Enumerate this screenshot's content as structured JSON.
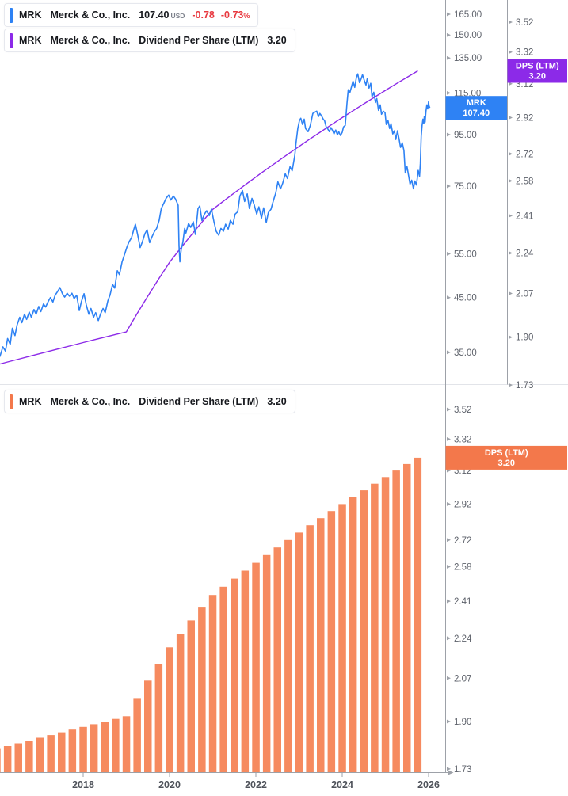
{
  "colors": {
    "price_blue": "#2e82f4",
    "dps_purple": "#8c2ae8",
    "bar_orange": "#f68a5f",
    "badge_orange": "#f3784b",
    "down_red": "#e8383f",
    "tick_label_gray": "#5e626b",
    "axis_gray": "#9da1a8",
    "year_label_gray": "#4e525a",
    "divider_gray": "#e2e4e9",
    "text_dark": "#16181d"
  },
  "legend_rows": {
    "price_row": {
      "symbol": "MRK",
      "company": "Merck & Co., Inc.",
      "price": "107.40",
      "currency": "USD",
      "change": "-0.78",
      "change_pct": "-0.73",
      "percent": "%"
    },
    "dps_row_top": {
      "symbol": "MRK",
      "company": "Merck & Co., Inc.",
      "metric": "Dividend Per Share (LTM)",
      "value": "3.20"
    },
    "dps_row_bottom": {
      "symbol": "MRK",
      "company": "Merck & Co., Inc.",
      "metric": "Dividend Per Share (LTM)",
      "value": "3.20"
    }
  },
  "badges": {
    "price": {
      "line1": "MRK",
      "line2": "107.40"
    },
    "dps_top": {
      "line1": "DPS (LTM)",
      "line2": "3.20"
    },
    "dps_bottom": {
      "line1": "DPS (LTM)",
      "line2": "3.20"
    }
  },
  "chart_data": [
    {
      "type": "line",
      "title": "MRK Merck & Co., Inc. price (USD) with Dividend Per Share (LTM) overlay",
      "x_axis": {
        "range": [
          2016.07,
          2026.03
        ],
        "tick_years": [
          2018,
          2020,
          2022,
          2024,
          2026
        ]
      },
      "price_axis": {
        "scale": "log",
        "ticks": [
          165,
          150,
          135,
          115,
          95,
          75,
          55,
          45,
          35
        ],
        "last_price": 107.4
      },
      "dps_axis": {
        "scale": "log",
        "ticks": [
          3.52,
          3.32,
          3.12,
          2.92,
          2.72,
          2.58,
          2.41,
          2.24,
          2.07,
          1.9,
          1.73
        ],
        "last_value": 3.2
      },
      "series": [
        {
          "name": "MRK price",
          "color_key": "price_blue",
          "points": [
            [
              2016.07,
              34.3
            ],
            [
              2016.14,
              35.9
            ],
            [
              2016.2,
              35.2
            ],
            [
              2016.25,
              37.3
            ],
            [
              2016.31,
              36.3
            ],
            [
              2016.36,
              39.1
            ],
            [
              2016.42,
              37.8
            ],
            [
              2016.47,
              39.7
            ],
            [
              2016.53,
              41.1
            ],
            [
              2016.58,
              40.1
            ],
            [
              2016.64,
              41.7
            ],
            [
              2016.69,
              40.7
            ],
            [
              2016.75,
              42.1
            ],
            [
              2016.8,
              41.1
            ],
            [
              2016.86,
              42.6
            ],
            [
              2016.91,
              41.7
            ],
            [
              2016.97,
              43.2
            ],
            [
              2017.02,
              42.2
            ],
            [
              2017.08,
              43.7
            ],
            [
              2017.13,
              43.1
            ],
            [
              2017.19,
              44.2
            ],
            [
              2017.24,
              45.0
            ],
            [
              2017.3,
              44.1
            ],
            [
              2017.35,
              45.5
            ],
            [
              2017.41,
              46.3
            ],
            [
              2017.46,
              47.1
            ],
            [
              2017.52,
              45.8
            ],
            [
              2017.57,
              45.1
            ],
            [
              2017.63,
              45.9
            ],
            [
              2017.68,
              45.3
            ],
            [
              2017.74,
              45.9
            ],
            [
              2017.79,
              44.8
            ],
            [
              2017.85,
              45.5
            ],
            [
              2017.91,
              42.4
            ],
            [
              2017.96,
              44.2
            ],
            [
              2018.02,
              45.8
            ],
            [
              2018.07,
              43.6
            ],
            [
              2018.13,
              41.7
            ],
            [
              2018.18,
              42.8
            ],
            [
              2018.24,
              41.1
            ],
            [
              2018.29,
              42.0
            ],
            [
              2018.35,
              40.5
            ],
            [
              2018.4,
              41.7
            ],
            [
              2018.46,
              42.8
            ],
            [
              2018.51,
              42.0
            ],
            [
              2018.57,
              44.3
            ],
            [
              2018.62,
              45.5
            ],
            [
              2018.68,
              47.8
            ],
            [
              2018.73,
              47.0
            ],
            [
              2018.79,
              50.9
            ],
            [
              2018.84,
              50.0
            ],
            [
              2018.9,
              53.0
            ],
            [
              2018.95,
              54.6
            ],
            [
              2019.01,
              56.6
            ],
            [
              2019.06,
              58.1
            ],
            [
              2019.12,
              59.2
            ],
            [
              2019.17,
              61.4
            ],
            [
              2019.21,
              63.0
            ],
            [
              2019.26,
              60.1
            ],
            [
              2019.32,
              56.6
            ],
            [
              2019.37,
              58.1
            ],
            [
              2019.43,
              60.3
            ],
            [
              2019.48,
              61.4
            ],
            [
              2019.54,
              57.9
            ],
            [
              2019.59,
              59.4
            ],
            [
              2019.65,
              60.9
            ],
            [
              2019.7,
              61.8
            ],
            [
              2019.76,
              64.1
            ],
            [
              2019.81,
              67.7
            ],
            [
              2019.87,
              69.4
            ],
            [
              2019.92,
              70.9
            ],
            [
              2019.98,
              72.0
            ],
            [
              2020.03,
              70.4
            ],
            [
              2020.09,
              71.7
            ],
            [
              2020.14,
              70.7
            ],
            [
              2020.2,
              68.7
            ],
            [
              2020.22,
              57.0
            ],
            [
              2020.24,
              53.0
            ],
            [
              2020.27,
              56.0
            ],
            [
              2020.31,
              58.1
            ],
            [
              2020.35,
              61.8
            ],
            [
              2020.38,
              60.5
            ],
            [
              2020.44,
              63.2
            ],
            [
              2020.49,
              62.1
            ],
            [
              2020.55,
              63.7
            ],
            [
              2020.6,
              60.1
            ],
            [
              2020.66,
              67.7
            ],
            [
              2020.7,
              68.5
            ],
            [
              2020.75,
              64.1
            ],
            [
              2020.81,
              66.0
            ],
            [
              2020.86,
              67.0
            ],
            [
              2020.92,
              65.5
            ],
            [
              2020.97,
              67.5
            ],
            [
              2021.03,
              63.7
            ],
            [
              2021.08,
              61.0
            ],
            [
              2021.14,
              59.9
            ],
            [
              2021.19,
              61.8
            ],
            [
              2021.25,
              61.0
            ],
            [
              2021.3,
              63.0
            ],
            [
              2021.36,
              61.6
            ],
            [
              2021.41,
              64.1
            ],
            [
              2021.47,
              63.0
            ],
            [
              2021.52,
              66.0
            ],
            [
              2021.58,
              66.7
            ],
            [
              2021.63,
              71.7
            ],
            [
              2021.69,
              73.5
            ],
            [
              2021.74,
              69.9
            ],
            [
              2021.8,
              72.4
            ],
            [
              2021.85,
              67.7
            ],
            [
              2021.91,
              70.9
            ],
            [
              2021.96,
              68.9
            ],
            [
              2022.02,
              66.0
            ],
            [
              2022.07,
              68.2
            ],
            [
              2022.13,
              64.8
            ],
            [
              2022.18,
              67.9
            ],
            [
              2022.24,
              63.5
            ],
            [
              2022.29,
              66.5
            ],
            [
              2022.35,
              67.5
            ],
            [
              2022.4,
              69.9
            ],
            [
              2022.46,
              72.7
            ],
            [
              2022.51,
              76.5
            ],
            [
              2022.57,
              74.1
            ],
            [
              2022.62,
              76.0
            ],
            [
              2022.68,
              79.4
            ],
            [
              2022.73,
              77.7
            ],
            [
              2022.79,
              82.0
            ],
            [
              2022.84,
              80.5
            ],
            [
              2022.9,
              86.3
            ],
            [
              2022.93,
              91.5
            ],
            [
              2022.97,
              97.7
            ],
            [
              2023.01,
              101.3
            ],
            [
              2023.04,
              102.4
            ],
            [
              2023.08,
              99.5
            ],
            [
              2023.12,
              102.0
            ],
            [
              2023.15,
              97.7
            ],
            [
              2023.21,
              96.3
            ],
            [
              2023.26,
              99.1
            ],
            [
              2023.32,
              104.7
            ],
            [
              2023.37,
              105.4
            ],
            [
              2023.41,
              105.8
            ],
            [
              2023.45,
              103.2
            ],
            [
              2023.48,
              104.7
            ],
            [
              2023.52,
              103.6
            ],
            [
              2023.56,
              102.0
            ],
            [
              2023.59,
              101.3
            ],
            [
              2023.63,
              98.4
            ],
            [
              2023.67,
              97.4
            ],
            [
              2023.7,
              96.3
            ],
            [
              2023.74,
              98.1
            ],
            [
              2023.78,
              96.7
            ],
            [
              2023.81,
              95.3
            ],
            [
              2023.85,
              97.0
            ],
            [
              2023.89,
              94.9
            ],
            [
              2023.92,
              96.3
            ],
            [
              2023.96,
              94.6
            ],
            [
              2024.0,
              96.0
            ],
            [
              2024.03,
              98.4
            ],
            [
              2024.07,
              99.1
            ],
            [
              2024.11,
              109.7
            ],
            [
              2024.14,
              116.7
            ],
            [
              2024.18,
              115.4
            ],
            [
              2024.22,
              118.8
            ],
            [
              2024.25,
              121.4
            ],
            [
              2024.29,
              118.0
            ],
            [
              2024.33,
              123.7
            ],
            [
              2024.36,
              125.5
            ],
            [
              2024.4,
              120.6
            ],
            [
              2024.44,
              122.8
            ],
            [
              2024.47,
              125.0
            ],
            [
              2024.51,
              121.9
            ],
            [
              2024.55,
              119.3
            ],
            [
              2024.58,
              122.8
            ],
            [
              2024.62,
              117.6
            ],
            [
              2024.66,
              120.2
            ],
            [
              2024.69,
              113.0
            ],
            [
              2024.73,
              115.4
            ],
            [
              2024.77,
              110.1
            ],
            [
              2024.8,
              112.1
            ],
            [
              2024.84,
              106.2
            ],
            [
              2024.88,
              108.9
            ],
            [
              2024.91,
              104.3
            ],
            [
              2024.95,
              105.8
            ],
            [
              2024.99,
              105.1
            ],
            [
              2025.02,
              99.5
            ],
            [
              2025.06,
              101.3
            ],
            [
              2025.1,
              97.7
            ],
            [
              2025.13,
              99.9
            ],
            [
              2025.17,
              95.3
            ],
            [
              2025.21,
              96.7
            ],
            [
              2025.24,
              92.9
            ],
            [
              2025.28,
              96.7
            ],
            [
              2025.32,
              92.9
            ],
            [
              2025.35,
              89.6
            ],
            [
              2025.39,
              91.5
            ],
            [
              2025.43,
              88.3
            ],
            [
              2025.46,
              79.7
            ],
            [
              2025.5,
              82.0
            ],
            [
              2025.54,
              78.5
            ],
            [
              2025.57,
              75.7
            ],
            [
              2025.61,
              77.1
            ],
            [
              2025.65,
              74.1
            ],
            [
              2025.68,
              76.8
            ],
            [
              2025.72,
              75.4
            ],
            [
              2025.76,
              80.6
            ],
            [
              2025.79,
              78.5
            ],
            [
              2025.81,
              83.3
            ],
            [
              2025.83,
              94.3
            ],
            [
              2025.85,
              99.1
            ],
            [
              2025.87,
              102.0
            ],
            [
              2025.89,
              99.9
            ],
            [
              2025.9,
              103.2
            ],
            [
              2025.92,
              100.6
            ],
            [
              2025.94,
              105.8
            ],
            [
              2025.96,
              108.9
            ],
            [
              2025.98,
              106.9
            ],
            [
              2026.0,
              110.5
            ],
            [
              2026.01,
              108.5
            ],
            [
              2026.03,
              107.4
            ]
          ]
        },
        {
          "name": "MRK Dividend Per Share (LTM)",
          "color_key": "dps_purple",
          "note": "same quarterly series as bottom panel bars"
        }
      ]
    },
    {
      "type": "bar",
      "title": "MRK Merck & Co., Inc. Dividend Per Share (LTM)",
      "y_axis": {
        "scale": "log",
        "ticks": [
          3.52,
          3.32,
          3.12,
          2.92,
          2.72,
          2.58,
          2.41,
          2.24,
          2.07,
          1.9,
          1.73
        ],
        "last_value": 3.2
      },
      "x_axis": {
        "tick_years": [
          2018,
          2020,
          2022,
          2024,
          2026
        ]
      },
      "categories": [
        "2015-Q4",
        "2016-Q1",
        "2016-Q2",
        "2016-Q3",
        "2016-Q4",
        "2017-Q1",
        "2017-Q2",
        "2017-Q3",
        "2017-Q4",
        "2018-Q1",
        "2018-Q2",
        "2018-Q3",
        "2018-Q4",
        "2019-Q1",
        "2019-Q2",
        "2019-Q3",
        "2019-Q4",
        "2020-Q1",
        "2020-Q2",
        "2020-Q3",
        "2020-Q4",
        "2021-Q1",
        "2021-Q2",
        "2021-Q3",
        "2021-Q4",
        "2022-Q1",
        "2022-Q2",
        "2022-Q3",
        "2022-Q4",
        "2023-Q1",
        "2023-Q2",
        "2023-Q3",
        "2023-Q4",
        "2024-Q1",
        "2024-Q2",
        "2024-Q3",
        "2024-Q4",
        "2025-Q1",
        "2025-Q2",
        "2025-Q3"
      ],
      "values": [
        1.8,
        1.81,
        1.82,
        1.83,
        1.84,
        1.85,
        1.86,
        1.87,
        1.88,
        1.89,
        1.9,
        1.91,
        1.92,
        1.99,
        2.06,
        2.13,
        2.2,
        2.26,
        2.32,
        2.38,
        2.44,
        2.48,
        2.52,
        2.56,
        2.6,
        2.64,
        2.68,
        2.72,
        2.76,
        2.8,
        2.84,
        2.88,
        2.92,
        2.96,
        3.0,
        3.04,
        3.08,
        3.12,
        3.16,
        3.2
      ]
    }
  ]
}
